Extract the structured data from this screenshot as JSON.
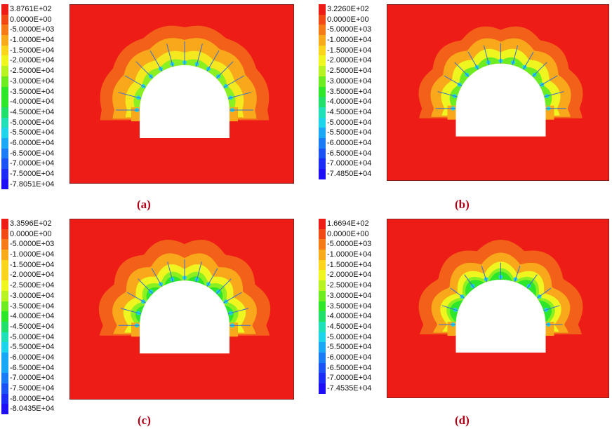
{
  "colors": {
    "red": "#ee1c16",
    "caption": "#b00018",
    "scale": [
      "#ee1c16",
      "#f14a17",
      "#f57b18",
      "#f8ab1a",
      "#fbd41c",
      "#eef51f",
      "#b7f321",
      "#6ded21",
      "#2ee62a",
      "#21e06a",
      "#1fe0b7",
      "#1dd4ea",
      "#1aa7f3",
      "#1a7bf4",
      "#1a52f4",
      "#1b2df5",
      "#1f0ff5"
    ]
  },
  "panels": [
    {
      "id": "a",
      "caption": "(a)",
      "legend": [
        "3.8761E+02",
        "0.0000E+00",
        "-5.0000E+03",
        "-1.0000E+04",
        "-1.5000E+04",
        "-2.0000E+04",
        "-2.5000E+04",
        "-3.0000E+04",
        "-3.5000E+04",
        "-4.0000E+04",
        "-4.5000E+04",
        "-5.0000E+04",
        "-5.5000E+04",
        "-6.0000E+04",
        "-6.5000E+04",
        "-7.0000E+04",
        "-7.5000E+04",
        "-7.8051E+04"
      ]
    },
    {
      "id": "b",
      "caption": "(b)",
      "legend": [
        "3.2260E+02",
        "0.0000E+00",
        "-5.0000E+03",
        "-1.0000E+04",
        "-1.5000E+04",
        "-2.0000E+04",
        "-2.5000E+04",
        "-3.0000E+04",
        "-3.5000E+04",
        "-4.0000E+04",
        "-4.5000E+04",
        "-5.0000E+04",
        "-5.5000E+04",
        "-6.0000E+04",
        "-6.5000E+04",
        "-7.0000E+04",
        "-7.4850E+04"
      ]
    },
    {
      "id": "c",
      "caption": "(c)",
      "legend": [
        "3.3596E+02",
        "0.0000E+00",
        "-5.0000E+03",
        "-1.0000E+04",
        "-1.5000E+04",
        "-2.0000E+04",
        "-2.5000E+04",
        "-3.0000E+04",
        "-3.5000E+04",
        "-4.0000E+04",
        "-4.5000E+04",
        "-5.0000E+04",
        "-5.5000E+04",
        "-6.0000E+04",
        "-6.5000E+04",
        "-7.0000E+04",
        "-7.5000E+04",
        "-8.0000E+04",
        "-8.0435E+04"
      ]
    },
    {
      "id": "d",
      "caption": "(d)",
      "legend": [
        "1.6694E+02",
        "0.0000E+00",
        "-5.0000E+03",
        "-1.0000E+04",
        "-1.5000E+04",
        "-2.0000E+04",
        "-2.5000E+04",
        "-3.0000E+04",
        "-3.5000E+04",
        "-4.0000E+04",
        "-4.5000E+04",
        "-5.0000E+04",
        "-5.5000E+04",
        "-6.0000E+04",
        "-6.5000E+04",
        "-7.0000E+04",
        "-7.4535E+04"
      ]
    }
  ]
}
